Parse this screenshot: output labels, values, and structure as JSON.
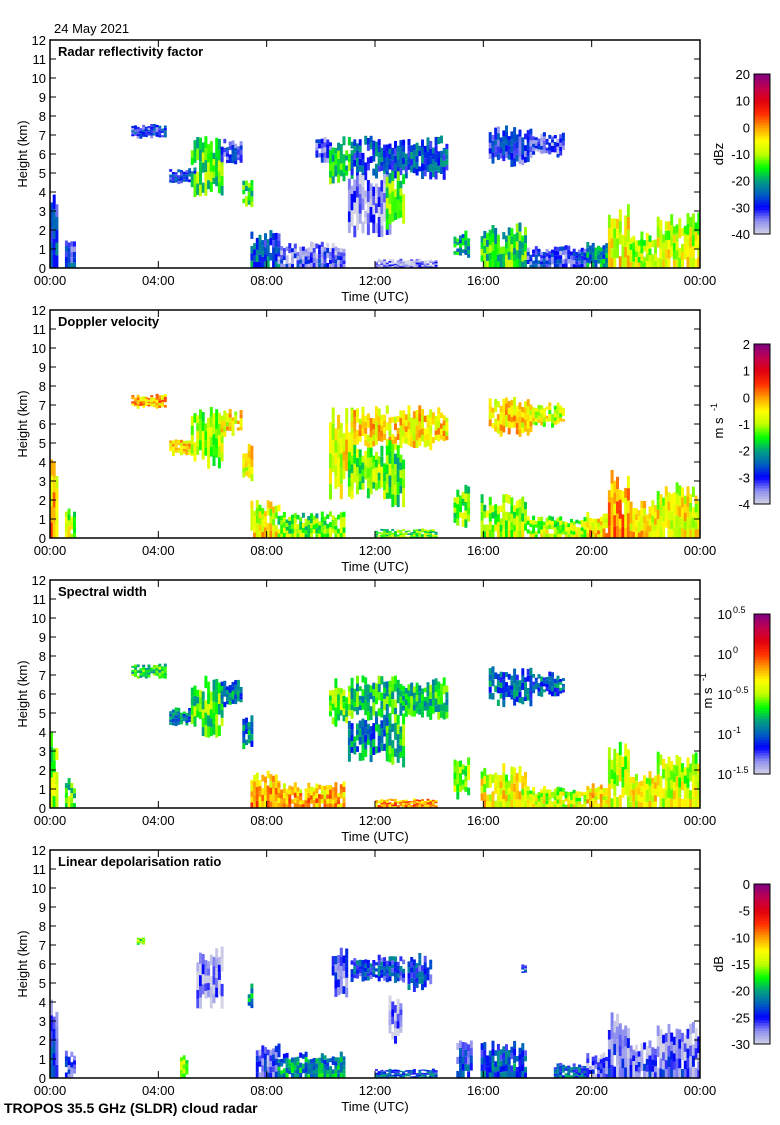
{
  "date": "24 May 2021",
  "footer": "TROPOS 35.5 GHz (SLDR) cloud radar",
  "colormap": [
    "#d4d4e4",
    "#9090f0",
    "#0000ff",
    "#0060c0",
    "#00a080",
    "#00ff00",
    "#c0ff00",
    "#ffff00",
    "#ffa000",
    "#ff3000",
    "#e00010",
    "#c00050",
    "#800080"
  ],
  "chart_data": [
    {
      "type": "heatmap",
      "title": "Radar reflectivity factor",
      "xlabel": "Time (UTC)",
      "ylabel": "Height (km)",
      "xlim": [
        "00:00",
        "24:00"
      ],
      "xticks": [
        "00:00",
        "04:00",
        "08:00",
        "12:00",
        "16:00",
        "20:00",
        "00:00"
      ],
      "ylim": [
        0,
        12
      ],
      "yticks": [
        "0",
        "1",
        "2",
        "3",
        "4",
        "5",
        "6",
        "7",
        "8",
        "9",
        "10",
        "11",
        "12"
      ],
      "colorbar": {
        "unit": "dBz",
        "unit_sup": "",
        "range": [
          -40,
          20
        ],
        "scale": "linear",
        "ticks": [
          "20",
          "10",
          "0",
          "-10",
          "-20",
          "-30",
          "-40"
        ],
        "tick_sup": []
      },
      "echo_regions_columns": [
        "start_hour",
        "end_hour",
        "base_km",
        "top_km",
        "typical_value"
      ],
      "echo_regions": [
        [
          0.0,
          0.3,
          0,
          4.3,
          -30
        ],
        [
          0.55,
          0.9,
          0,
          1.6,
          -31
        ],
        [
          3.0,
          4.3,
          6.8,
          7.6,
          -30
        ],
        [
          4.4,
          5.3,
          4.3,
          5.3,
          -28
        ],
        [
          5.2,
          6.3,
          3.6,
          7.0,
          -14
        ],
        [
          6.3,
          7.0,
          5.3,
          6.8,
          -30
        ],
        [
          7.1,
          7.4,
          3.0,
          5.0,
          -16
        ],
        [
          7.4,
          8.4,
          0,
          2.0,
          -28
        ],
        [
          8.4,
          10.8,
          0,
          1.4,
          -35
        ],
        [
          9.8,
          10.3,
          5.5,
          7.0,
          -32
        ],
        [
          10.3,
          11.1,
          4.2,
          7.0,
          -16
        ],
        [
          11.1,
          14.6,
          4.6,
          7.0,
          -26
        ],
        [
          11.0,
          12.5,
          1.6,
          5.0,
          -36
        ],
        [
          12.4,
          13.0,
          2.0,
          5.2,
          -14
        ],
        [
          12.0,
          14.2,
          0,
          0.5,
          -38
        ],
        [
          14.9,
          15.4,
          0.4,
          2.0,
          -20
        ],
        [
          15.9,
          17.6,
          0,
          2.4,
          -18
        ],
        [
          16.2,
          17.8,
          5.3,
          7.5,
          -31
        ],
        [
          17.8,
          19.0,
          5.8,
          7.2,
          -33
        ],
        [
          17.6,
          19.8,
          0,
          1.2,
          -33
        ],
        [
          19.8,
          20.6,
          0,
          1.4,
          -24
        ],
        [
          20.6,
          21.4,
          0,
          3.6,
          -8
        ],
        [
          21.4,
          22.4,
          0,
          2.0,
          -12
        ],
        [
          22.4,
          24.0,
          0,
          3.0,
          -10
        ]
      ]
    },
    {
      "type": "heatmap",
      "title": "Doppler velocity",
      "xlabel": "Time (UTC)",
      "ylabel": "Height (km)",
      "xlim": [
        "00:00",
        "24:00"
      ],
      "xticks": [
        "00:00",
        "04:00",
        "08:00",
        "12:00",
        "16:00",
        "20:00",
        "00:00"
      ],
      "ylim": [
        0,
        12
      ],
      "yticks": [
        "0",
        "1",
        "2",
        "3",
        "4",
        "5",
        "6",
        "7",
        "8",
        "9",
        "10",
        "11",
        "12"
      ],
      "colorbar": {
        "unit": "m s",
        "unit_sup": "-1",
        "range": [
          -4,
          2
        ],
        "scale": "linear",
        "ticks": [
          "2",
          "1",
          "0",
          "-1",
          "-2",
          "-3",
          "-4"
        ],
        "tick_sup": []
      },
      "echo_regions_columns": [
        "start_hour",
        "end_hour",
        "base_km",
        "top_km",
        "typical_value"
      ],
      "echo_regions": [
        [
          0.0,
          0.3,
          0,
          4.3,
          -0.5
        ],
        [
          0.55,
          0.9,
          0,
          1.6,
          -1.2
        ],
        [
          3.0,
          4.3,
          6.8,
          7.6,
          -0.2
        ],
        [
          4.4,
          5.3,
          4.3,
          5.3,
          -0.4
        ],
        [
          5.2,
          6.3,
          3.6,
          7.0,
          -1.0
        ],
        [
          6.3,
          7.0,
          5.3,
          6.8,
          -0.5
        ],
        [
          7.1,
          7.4,
          2.8,
          5.0,
          -0.5
        ],
        [
          7.4,
          8.4,
          0,
          2.0,
          -0.8
        ],
        [
          8.4,
          10.8,
          0,
          1.4,
          -1.5
        ],
        [
          10.3,
          11.1,
          2.0,
          7.0,
          -0.6
        ],
        [
          11.1,
          14.6,
          4.6,
          7.0,
          -0.4
        ],
        [
          11.0,
          12.5,
          2.0,
          5.0,
          -1.2
        ],
        [
          12.4,
          13.0,
          1.6,
          5.2,
          -1.4
        ],
        [
          12.0,
          14.2,
          0,
          0.5,
          -1.6
        ],
        [
          14.9,
          15.4,
          0.4,
          2.8,
          -1.3
        ],
        [
          15.9,
          17.6,
          0,
          2.4,
          -1.3
        ],
        [
          16.2,
          17.8,
          5.3,
          7.5,
          -0.4
        ],
        [
          17.8,
          19.0,
          5.8,
          7.2,
          -0.8
        ],
        [
          17.6,
          19.8,
          0,
          1.2,
          -1.2
        ],
        [
          19.8,
          20.6,
          0,
          1.4,
          -0.6
        ],
        [
          20.6,
          21.4,
          0,
          3.6,
          -0.3
        ],
        [
          21.4,
          22.4,
          0,
          2.0,
          -0.7
        ],
        [
          22.4,
          24.0,
          0,
          3.0,
          -0.8
        ]
      ]
    },
    {
      "type": "heatmap",
      "title": "Spectral width",
      "xlabel": "Time (UTC)",
      "ylabel": "Height (km)",
      "xlim": [
        "00:00",
        "24:00"
      ],
      "xticks": [
        "00:00",
        "04:00",
        "08:00",
        "12:00",
        "16:00",
        "20:00",
        "00:00"
      ],
      "ylim": [
        0,
        12
      ],
      "yticks": [
        "0",
        "1",
        "2",
        "3",
        "4",
        "5",
        "6",
        "7",
        "8",
        "9",
        "10",
        "11",
        "12"
      ],
      "colorbar": {
        "unit": "m s",
        "unit_sup": "-1",
        "range": [
          0.0316,
          3.16
        ],
        "scale": "log",
        "ticks": [
          "10",
          "10",
          "10",
          "10",
          "10"
        ],
        "tick_sup": [
          "0.5",
          "0",
          "-0.5",
          "-1",
          "-1.5"
        ]
      },
      "echo_regions_columns": [
        "start_hour",
        "end_hour",
        "base_km",
        "top_km",
        "typical_value"
      ],
      "echo_regions": [
        [
          0.0,
          0.3,
          0,
          4.3,
          0.25
        ],
        [
          0.55,
          0.9,
          0,
          1.6,
          0.2
        ],
        [
          3.0,
          4.3,
          6.8,
          7.6,
          0.2
        ],
        [
          4.4,
          5.3,
          4.3,
          5.3,
          0.12
        ],
        [
          5.2,
          6.3,
          3.6,
          7.0,
          0.22
        ],
        [
          6.3,
          7.0,
          5.3,
          6.8,
          0.12
        ],
        [
          7.1,
          7.4,
          3.0,
          5.0,
          0.12
        ],
        [
          7.4,
          8.4,
          0,
          2.0,
          0.5
        ],
        [
          8.4,
          10.8,
          0,
          1.4,
          0.5
        ],
        [
          10.3,
          11.1,
          4.2,
          7.0,
          0.25
        ],
        [
          11.1,
          14.6,
          4.6,
          7.0,
          0.18
        ],
        [
          11.0,
          12.5,
          2.4,
          5.0,
          0.12
        ],
        [
          12.4,
          13.0,
          2.0,
          5.2,
          0.2
        ],
        [
          12.0,
          14.2,
          0,
          0.5,
          0.6
        ],
        [
          14.9,
          15.4,
          0.4,
          2.8,
          0.3
        ],
        [
          15.9,
          17.6,
          0,
          2.4,
          0.35
        ],
        [
          16.2,
          17.8,
          5.3,
          7.5,
          0.1
        ],
        [
          17.8,
          19.0,
          5.8,
          7.2,
          0.1
        ],
        [
          17.6,
          19.8,
          0,
          1.2,
          0.3
        ],
        [
          19.8,
          20.6,
          0,
          1.4,
          0.4
        ],
        [
          20.6,
          21.4,
          0,
          3.6,
          0.3
        ],
        [
          21.4,
          22.4,
          0,
          2.0,
          0.35
        ],
        [
          22.4,
          24.0,
          0,
          3.0,
          0.3
        ]
      ]
    },
    {
      "type": "heatmap",
      "title": "Linear depolarisation ratio",
      "xlabel": "Time (UTC)",
      "ylabel": "Height (km)",
      "xlim": [
        "00:00",
        "24:00"
      ],
      "xticks": [
        "00:00",
        "04:00",
        "08:00",
        "12:00",
        "16:00",
        "20:00",
        "00:00"
      ],
      "ylim": [
        0,
        12
      ],
      "yticks": [
        "0",
        "1",
        "2",
        "3",
        "4",
        "5",
        "6",
        "7",
        "8",
        "9",
        "10",
        "11",
        "12"
      ],
      "colorbar": {
        "unit": "dB",
        "unit_sup": "",
        "range": [
          -30,
          0
        ],
        "scale": "linear",
        "ticks": [
          "0",
          "-5",
          "-10",
          "-15",
          "-20",
          "-25",
          "-30"
        ],
        "tick_sup": []
      },
      "echo_regions_columns": [
        "start_hour",
        "end_hour",
        "base_km",
        "top_km",
        "typical_value"
      ],
      "echo_regions": [
        [
          0.0,
          0.3,
          0,
          4.3,
          -26
        ],
        [
          0.55,
          0.9,
          0,
          1.6,
          -27
        ],
        [
          3.2,
          3.5,
          7.0,
          7.4,
          -16
        ],
        [
          4.8,
          5.0,
          0,
          1.2,
          -16
        ],
        [
          5.4,
          6.3,
          3.6,
          7.0,
          -28
        ],
        [
          7.3,
          7.4,
          3.5,
          5.0,
          -20
        ],
        [
          7.6,
          8.4,
          0,
          2.0,
          -27
        ],
        [
          8.4,
          10.8,
          0,
          1.4,
          -22
        ],
        [
          10.4,
          10.9,
          4.2,
          7.0,
          -26
        ],
        [
          11.1,
          13.0,
          5.0,
          6.5,
          -24
        ],
        [
          13.2,
          14.0,
          4.5,
          6.7,
          -24
        ],
        [
          12.5,
          12.9,
          1.8,
          4.5,
          -28
        ],
        [
          12.0,
          14.2,
          0,
          0.5,
          -24
        ],
        [
          15.0,
          15.5,
          0,
          2.0,
          -26
        ],
        [
          15.9,
          17.6,
          0,
          2.0,
          -24
        ],
        [
          17.4,
          17.6,
          5.5,
          6.0,
          -24
        ],
        [
          18.6,
          19.8,
          0,
          0.8,
          -24
        ],
        [
          19.8,
          20.6,
          0,
          1.4,
          -28
        ],
        [
          20.6,
          21.4,
          0,
          3.6,
          -28
        ],
        [
          21.4,
          22.4,
          0,
          2.0,
          -28
        ],
        [
          22.4,
          24.0,
          0,
          3.0,
          -28
        ]
      ]
    }
  ]
}
